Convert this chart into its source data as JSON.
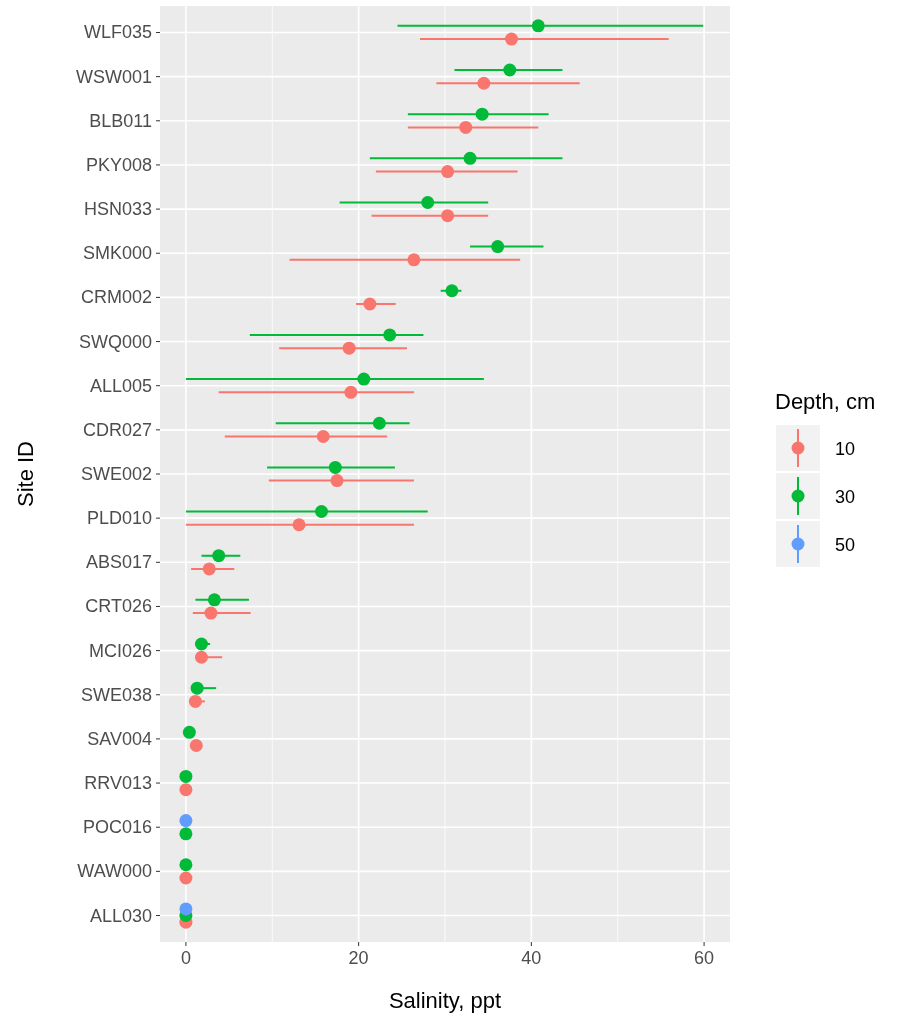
{
  "chart_data": {
    "type": "scatter",
    "orientation": "horizontal",
    "xlabel": "Salinity, ppt",
    "ylabel": "Site ID",
    "legend_title": "Depth, cm",
    "legend": "right",
    "grid": true,
    "marker": "circle",
    "categories": [
      "WLF035",
      "WSW001",
      "BLB011",
      "PKY008",
      "HSN033",
      "SMK000",
      "CRM002",
      "SWQ000",
      "ALL005",
      "CDR027",
      "SWE002",
      "PLD010",
      "ABS017",
      "CRT026",
      "MCI026",
      "SWE038",
      "SAV004",
      "RRV013",
      "POC016",
      "WAW000",
      "ALL030"
    ],
    "xlim": [
      -3,
      63
    ],
    "xticks": [
      0,
      20,
      40,
      60
    ],
    "series": [
      {
        "name": "10",
        "color": "#f8766d",
        "values": [
          37.7,
          34.5,
          32.4,
          30.3,
          30.3,
          26.4,
          21.3,
          18.9,
          19.1,
          15.9,
          17.5,
          13.1,
          2.7,
          2.9,
          1.8,
          1.1,
          1.2,
          0,
          null,
          0,
          0
        ],
        "errors": [
          [
            27.1,
            55.9
          ],
          [
            29.0,
            45.6
          ],
          [
            25.7,
            40.8
          ],
          [
            22.0,
            38.4
          ],
          [
            21.5,
            35.0
          ],
          [
            12.0,
            38.7
          ],
          [
            19.7,
            24.3
          ],
          [
            10.8,
            25.6
          ],
          [
            3.8,
            26.4
          ],
          [
            4.5,
            23.3
          ],
          [
            9.6,
            26.4
          ],
          [
            0,
            26.4
          ],
          [
            0.6,
            5.6
          ],
          [
            0.8,
            7.5
          ],
          [
            1.2,
            4.2
          ],
          [
            0.6,
            2.2
          ],
          null,
          null,
          null,
          null,
          null
        ]
      },
      {
        "name": "30",
        "color": "#00ba38",
        "values": [
          40.8,
          37.5,
          34.3,
          32.9,
          28.0,
          36.1,
          30.8,
          23.6,
          20.6,
          22.4,
          17.3,
          15.7,
          3.8,
          3.3,
          1.8,
          1.3,
          0.4,
          0,
          0,
          0,
          0
        ],
        "errors": [
          [
            24.5,
            59.9
          ],
          [
            31.1,
            43.6
          ],
          [
            25.7,
            42.0
          ],
          [
            21.3,
            43.6
          ],
          [
            17.8,
            35.0
          ],
          [
            32.9,
            41.4
          ],
          [
            29.5,
            31.9
          ],
          [
            7.4,
            27.5
          ],
          [
            0,
            34.5
          ],
          [
            10.4,
            25.9
          ],
          [
            9.4,
            24.2
          ],
          [
            0,
            28.0
          ],
          [
            1.8,
            6.3
          ],
          [
            1.1,
            7.3
          ],
          [
            1.2,
            2.8
          ],
          [
            0.7,
            3.5
          ],
          null,
          null,
          null,
          null,
          null
        ]
      },
      {
        "name": "50",
        "color": "#619cff",
        "values": [
          null,
          null,
          null,
          null,
          null,
          null,
          null,
          null,
          null,
          null,
          null,
          null,
          null,
          null,
          null,
          null,
          null,
          null,
          0,
          null,
          0
        ]
      }
    ]
  }
}
